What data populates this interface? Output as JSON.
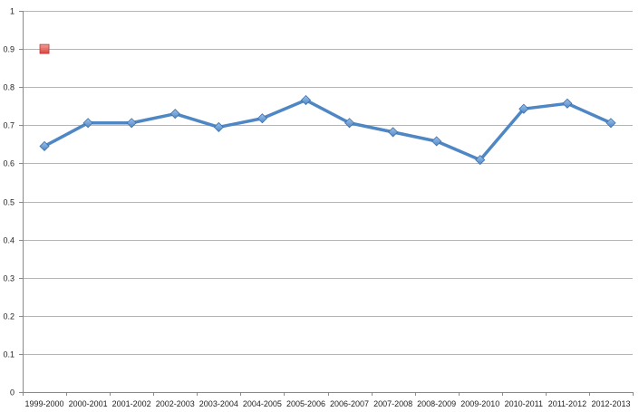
{
  "chart_data": {
    "type": "line",
    "title": "",
    "xlabel": "",
    "ylabel": "",
    "ylim": [
      0,
      1
    ],
    "yticks": [
      0,
      0.1,
      0.2,
      0.3,
      0.4,
      0.5,
      0.6,
      0.7,
      0.8,
      0.9,
      1
    ],
    "ytick_labels": [
      "0",
      "0.1",
      "0.2",
      "0.3",
      "0.4",
      "0.5",
      "0.6",
      "0.7",
      "0.8",
      "0.9",
      "1"
    ],
    "grid": true,
    "legend": "none",
    "categories": [
      "1999-2000",
      "2000-2001",
      "2001-2002",
      "2002-2003",
      "2003-2004",
      "2004-2005",
      "2005-2006",
      "2006-2007",
      "2007-2008",
      "2008-2009",
      "2009-2010",
      "2010-2011",
      "2011-2012",
      "2012-2013"
    ],
    "series": [
      {
        "marker": "diamond",
        "color": "#4f87c5",
        "values": [
          0.645,
          0.706,
          0.706,
          0.73,
          0.695,
          0.718,
          0.766,
          0.706,
          0.682,
          0.658,
          0.609,
          0.743,
          0.757,
          0.706
        ]
      },
      {
        "marker": "square",
        "color": "#e15a52",
        "values": [
          0.9,
          null,
          null,
          null,
          null,
          null,
          null,
          null,
          null,
          null,
          null,
          null,
          null,
          null
        ]
      }
    ]
  }
}
